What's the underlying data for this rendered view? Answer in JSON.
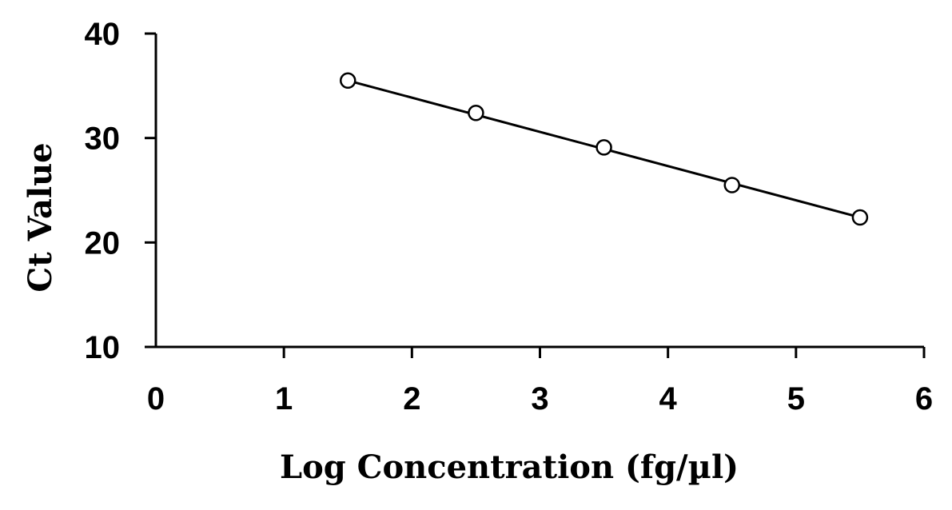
{
  "chart_data": {
    "type": "scatter",
    "title": "",
    "xlabel": "Log Concentration (fg/µl)",
    "ylabel": "Ct Value",
    "xlim": [
      0,
      6
    ],
    "ylim": [
      10,
      40
    ],
    "x_ticks": [
      "0",
      "1",
      "2",
      "3",
      "4",
      "5",
      "6"
    ],
    "y_ticks": [
      "10",
      "20",
      "30",
      "40"
    ],
    "grid": false,
    "legend": "none",
    "marker": "open-circle",
    "series": [
      {
        "x": [
          1.5,
          2.5,
          3.5,
          4.5,
          5.5
        ],
        "y": [
          35.5,
          32.4,
          29.1,
          25.5,
          22.4
        ]
      }
    ],
    "trendline": {
      "type": "linear",
      "x": [
        1.5,
        5.5
      ],
      "y": [
        35.5,
        22.4
      ]
    },
    "colors": {
      "line": "#000000",
      "marker": "#000000"
    }
  }
}
